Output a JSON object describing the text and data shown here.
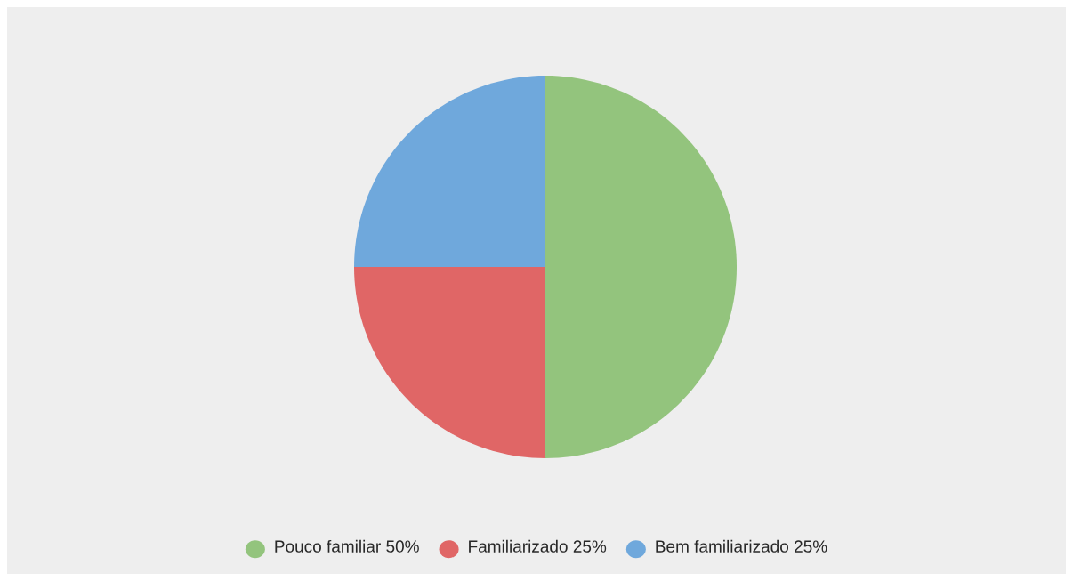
{
  "chart_data": {
    "type": "pie",
    "categories": [
      "Pouco familiar",
      "Familiarizado",
      "Bem familiarizado"
    ],
    "values": [
      50,
      25,
      25
    ],
    "value_labels": [
      "50%",
      "25%",
      "25%"
    ],
    "colors": [
      "#93c47d",
      "#e06666",
      "#6fa8dc"
    ],
    "legend": "bottom"
  }
}
